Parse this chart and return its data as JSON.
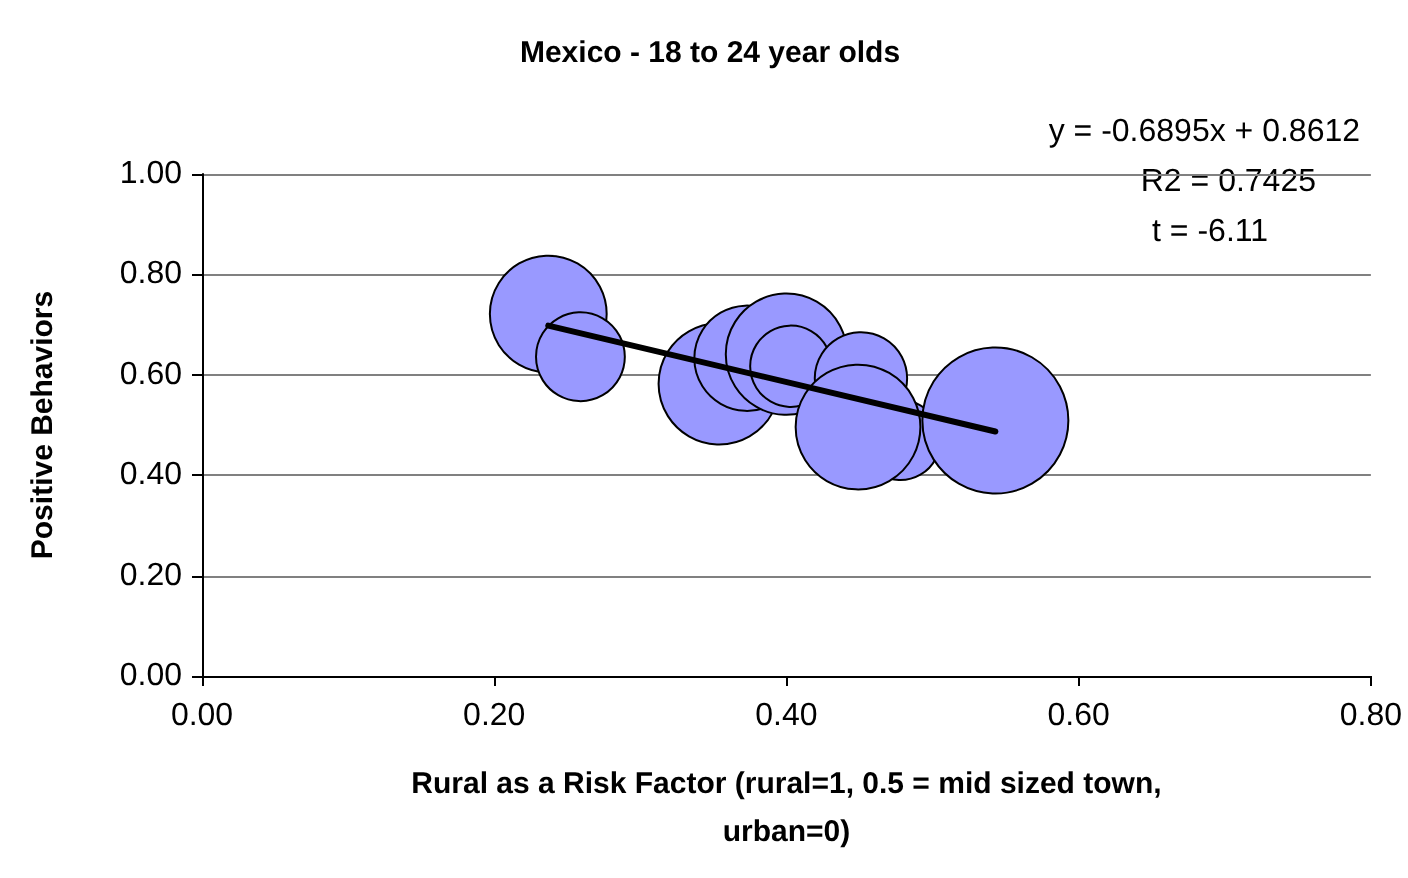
{
  "chart_data": {
    "type": "bubble",
    "title": "Mexico - 18 to 24 year olds",
    "xlabel": "Rural as a Risk Factor (rural=1, 0.5 = mid sized town,\nurban=0)",
    "ylabel": "Positive Behaviors",
    "annotations": [
      "y = -0.6895x + 0.8612",
      "R2 = 0.7425",
      "t = -6.11"
    ],
    "x": [
      0.237,
      0.259,
      0.354,
      0.373,
      0.4,
      0.403,
      0.451,
      0.478,
      0.449,
      0.543
    ],
    "series": [
      {
        "color": "#9999ff",
        "values": [
          0.721,
          0.636,
          0.582,
          0.633,
          0.641,
          0.617,
          0.593,
          0.47,
          0.496,
          0.509
        ],
        "sizes": [
          0.64,
          0.37,
          0.69,
          0.52,
          0.69,
          0.31,
          0.4,
          0.3,
          0.73,
          1
        ]
      },
      {
        "type": "line",
        "color": "#000000",
        "x": [
          0.237,
          0.543
        ],
        "values": [
          0.698,
          0.487
        ]
      }
    ],
    "xlim": [
      0,
      0.8
    ],
    "xticks": [
      {
        "value": 0,
        "label": "0.00"
      },
      {
        "value": 0.2,
        "label": "0.20"
      },
      {
        "value": 0.4,
        "label": "0.40"
      },
      {
        "value": 0.6,
        "label": "0.60"
      },
      {
        "value": 0.8,
        "label": "0.80"
      }
    ],
    "ylim": [
      0,
      1
    ],
    "yticks": [
      {
        "value": 0,
        "label": "0.00"
      },
      {
        "value": 0.2,
        "label": "0.20"
      },
      {
        "value": 0.4,
        "label": "0.40"
      },
      {
        "value": 0.6,
        "label": "0.60"
      },
      {
        "value": 0.8,
        "label": "0.80"
      },
      {
        "value": 1,
        "label": "1.00"
      }
    ],
    "grid": "y",
    "line_style": "solid"
  }
}
